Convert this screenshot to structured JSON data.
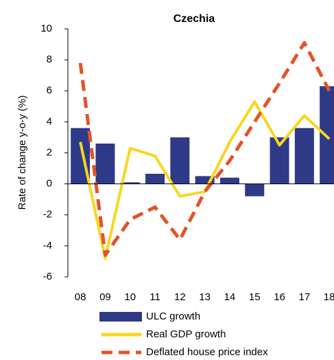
{
  "chart_data": {
    "type": "combo",
    "title": "Czechia",
    "y_label": "Rate of change y-o-y (%)",
    "categories": [
      "08",
      "09",
      "10",
      "11",
      "12",
      "13",
      "14",
      "15",
      "16",
      "17",
      "18"
    ],
    "series": [
      {
        "name": "ULC growth",
        "type": "bar",
        "color": "#2e3a87",
        "values": [
          3.6,
          2.6,
          0.1,
          0.65,
          3.0,
          0.5,
          0.4,
          -0.8,
          3.0,
          3.6,
          6.3
        ]
      },
      {
        "name": "Real GDP growth",
        "type": "line",
        "color": "#fad51e",
        "values": [
          2.7,
          -4.8,
          2.3,
          1.8,
          -0.8,
          -0.5,
          2.7,
          5.3,
          2.5,
          4.4,
          2.9
        ]
      },
      {
        "name": "Deflated house price index",
        "type": "dashed-line",
        "color": "#e4522a",
        "values": [
          7.8,
          -4.6,
          -2.3,
          -1.5,
          -3.6,
          -0.5,
          1.5,
          4.0,
          6.5,
          9.1,
          6.0
        ]
      }
    ],
    "ylim": [
      -6,
      10
    ],
    "yticks": [
      -6,
      -4,
      -2,
      0,
      2,
      4,
      6,
      8,
      10
    ],
    "legend": "bottom"
  }
}
